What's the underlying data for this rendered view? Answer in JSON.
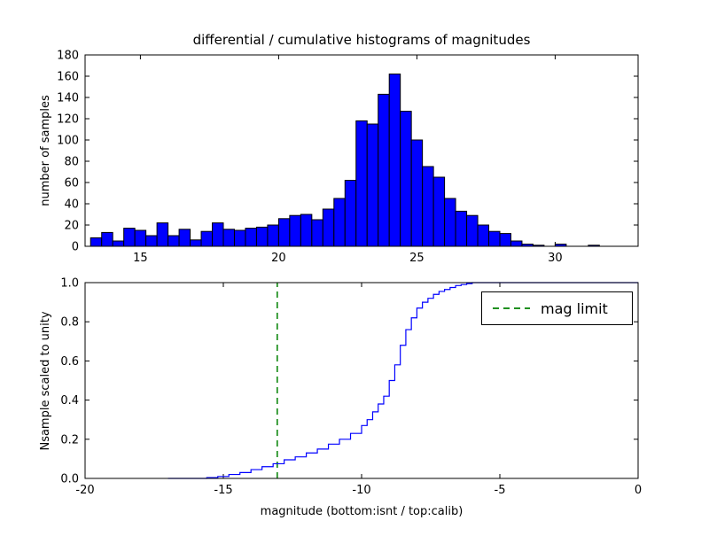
{
  "chart_data": [
    {
      "type": "bar",
      "title": "differential / cumulative histograms of magnitudes",
      "xlabel": "",
      "ylabel": "number of samples",
      "xlim": [
        13,
        33
      ],
      "ylim": [
        0,
        180
      ],
      "xticks": [
        15,
        20,
        25,
        30
      ],
      "xtick_labels": [
        "15",
        "20",
        "25",
        "30"
      ],
      "yticks": [
        0,
        20,
        40,
        60,
        80,
        100,
        120,
        140,
        160,
        180
      ],
      "ytick_labels": [
        "0",
        "20",
        "40",
        "60",
        "80",
        "100",
        "120",
        "140",
        "160",
        "180"
      ],
      "grid": false,
      "bar_color": "#0000ff",
      "bar_edge_color": "#000000",
      "bin_width": 0.4,
      "bin_starts": [
        13.2,
        13.6,
        14.0,
        14.4,
        14.8,
        15.2,
        15.6,
        16.0,
        16.4,
        16.8,
        17.2,
        17.6,
        18.0,
        18.4,
        18.8,
        19.2,
        19.6,
        20.0,
        20.4,
        20.8,
        21.2,
        21.6,
        22.0,
        22.4,
        22.8,
        23.2,
        23.6,
        24.0,
        24.4,
        24.8,
        25.2,
        25.6,
        26.0,
        26.4,
        26.8,
        27.2,
        27.6,
        28.0,
        28.4,
        28.8,
        29.2,
        29.6,
        30.0,
        30.4,
        30.8,
        31.2
      ],
      "counts": [
        8,
        13,
        5,
        17,
        15,
        10,
        22,
        10,
        16,
        6,
        14,
        22,
        16,
        15,
        17,
        18,
        20,
        26,
        29,
        30,
        25,
        35,
        45,
        62,
        118,
        115,
        143,
        162,
        127,
        100,
        75,
        65,
        45,
        33,
        29,
        20,
        14,
        12,
        5,
        2,
        1,
        0,
        2,
        0,
        0,
        1
      ]
    },
    {
      "type": "line",
      "title": "",
      "xlabel": "magnitude (bottom:isnt / top:calib)",
      "ylabel": "Nsample scaled to unity",
      "xlim": [
        -20,
        0
      ],
      "ylim": [
        0,
        1.0
      ],
      "xticks": [
        -20,
        -15,
        -10,
        -5,
        0
      ],
      "xtick_labels": [
        "-20",
        "-15",
        "-10",
        "-5",
        "0"
      ],
      "yticks": [
        0.0,
        0.2,
        0.4,
        0.6,
        0.8,
        1.0
      ],
      "ytick_labels": [
        "0.0",
        "0.2",
        "0.4",
        "0.6",
        "0.8",
        "1.0"
      ],
      "grid": false,
      "step": true,
      "line_color": "#0000ff",
      "x": [
        -17.0,
        -15.8,
        -15.6,
        -15.2,
        -14.8,
        -14.4,
        -14.0,
        -13.6,
        -13.2,
        -12.8,
        -12.4,
        -12.0,
        -11.6,
        -11.2,
        -10.8,
        -10.4,
        -10.0,
        -9.8,
        -9.6,
        -9.4,
        -9.2,
        -9.0,
        -8.8,
        -8.6,
        -8.4,
        -8.2,
        -8.0,
        -7.8,
        -7.6,
        -7.4,
        -7.2,
        -7.0,
        -6.8,
        -6.6,
        -6.4,
        -6.2,
        -6.0,
        0.0
      ],
      "y": [
        0.0,
        0.0,
        0.004,
        0.01,
        0.02,
        0.03,
        0.045,
        0.06,
        0.075,
        0.095,
        0.11,
        0.13,
        0.15,
        0.175,
        0.2,
        0.23,
        0.27,
        0.3,
        0.34,
        0.38,
        0.42,
        0.5,
        0.58,
        0.68,
        0.76,
        0.82,
        0.87,
        0.9,
        0.92,
        0.94,
        0.955,
        0.965,
        0.975,
        0.985,
        0.99,
        0.995,
        1.0,
        1.0
      ],
      "vline": {
        "x": -13.05,
        "color": "#008000",
        "style": "dashed",
        "label": "mag limit"
      },
      "legend": {
        "label": "mag limit",
        "position": "upper right"
      }
    }
  ]
}
